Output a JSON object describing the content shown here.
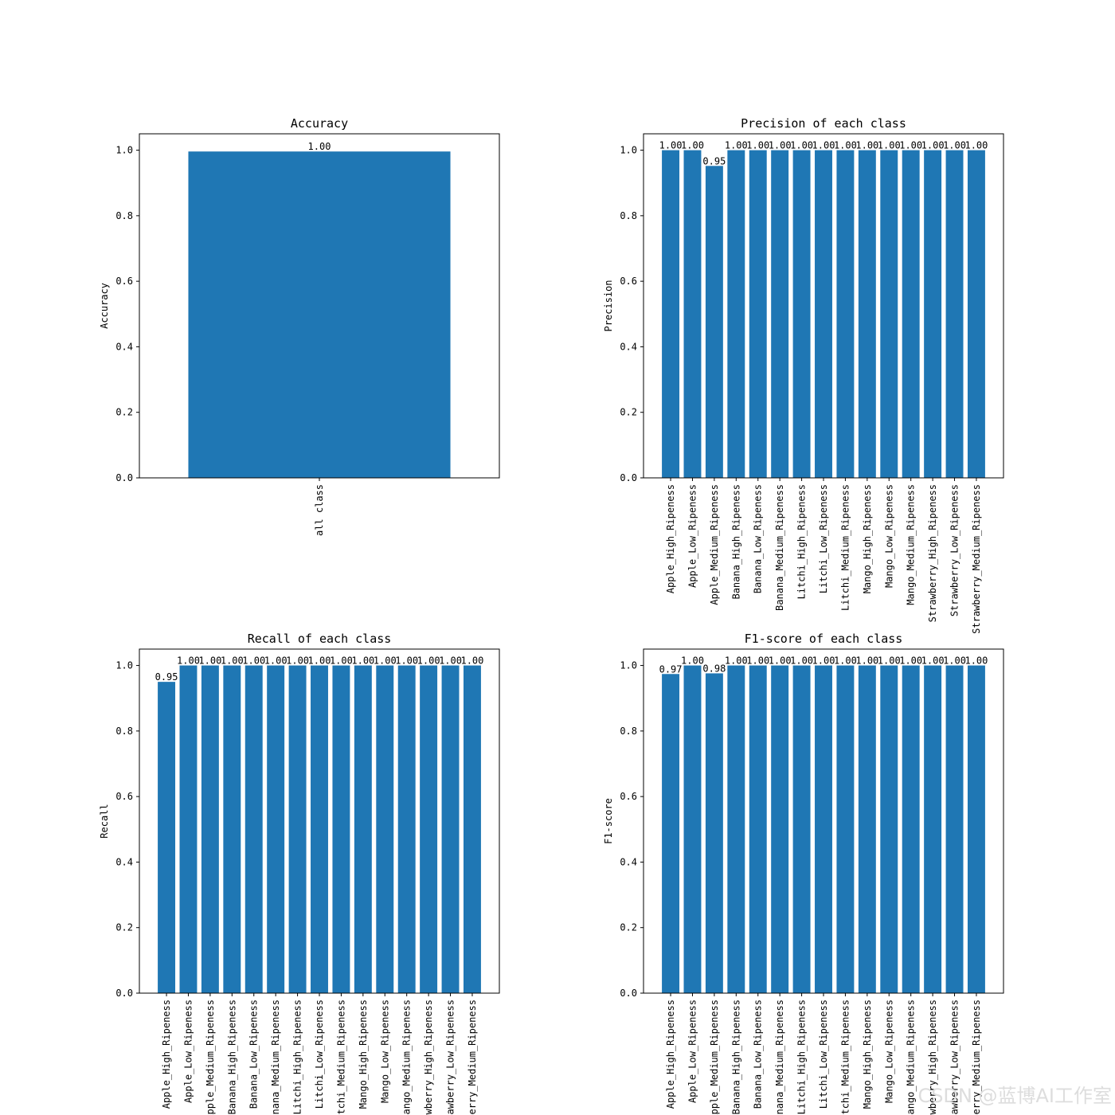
{
  "charts": [
    {
      "type": "bar",
      "title": "Accuracy",
      "ylabel": "Accuracy",
      "categories": [
        "all class"
      ],
      "values": [
        0.996
      ],
      "value_labels": [
        "1.00"
      ],
      "ylim": [
        0,
        1.05
      ],
      "yticks": [
        "0.0",
        "0.2",
        "0.4",
        "0.6",
        "0.8",
        "1.0"
      ],
      "grid": false,
      "legend": "none"
    },
    {
      "type": "bar",
      "title": "Precision of each class",
      "ylabel": "Precision",
      "categories": [
        "Apple_High_Ripeness",
        "Apple_Low_Ripeness",
        "Apple_Medium_Ripeness",
        "Banana_High_Ripeness",
        "Banana_Low_Ripeness",
        "Banana_Medium_Ripeness",
        "Litchi_High_Ripeness",
        "Litchi_Low_Ripeness",
        "Litchi_Medium_Ripeness",
        "Mango_High_Ripeness",
        "Mango_Low_Ripeness",
        "Mango_Medium_Ripeness",
        "Strawberry_High_Ripeness",
        "Strawberry_Low_Ripeness",
        "Strawberry_Medium_Ripeness"
      ],
      "values": [
        1.0,
        1.0,
        0.952,
        1.0,
        1.0,
        1.0,
        1.0,
        1.0,
        1.0,
        1.0,
        1.0,
        1.0,
        1.0,
        1.0,
        1.0
      ],
      "value_labels": [
        "1.00",
        "1.00",
        "0.95",
        "1.00",
        "1.00",
        "1.00",
        "1.00",
        "1.00",
        "1.00",
        "1.00",
        "1.00",
        "1.00",
        "1.00",
        "1.00",
        "1.00"
      ],
      "ylim": [
        0,
        1.05
      ],
      "yticks": [
        "0.0",
        "0.2",
        "0.4",
        "0.6",
        "0.8",
        "1.0"
      ],
      "grid": false,
      "legend": "none"
    },
    {
      "type": "bar",
      "title": "Recall of each class",
      "ylabel": "Recall",
      "categories": [
        "Apple_High_Ripeness",
        "Apple_Low_Ripeness",
        "Apple_Medium_Ripeness",
        "Banana_High_Ripeness",
        "Banana_Low_Ripeness",
        "Banana_Medium_Ripeness",
        "Litchi_High_Ripeness",
        "Litchi_Low_Ripeness",
        "Litchi_Medium_Ripeness",
        "Mango_High_Ripeness",
        "Mango_Low_Ripeness",
        "Mango_Medium_Ripeness",
        "Strawberry_High_Ripeness",
        "Strawberry_Low_Ripeness",
        "Strawberry_Medium_Ripeness"
      ],
      "values": [
        0.95,
        1.0,
        1.0,
        1.0,
        1.0,
        1.0,
        1.0,
        1.0,
        1.0,
        1.0,
        1.0,
        1.0,
        1.0,
        1.0,
        1.0
      ],
      "value_labels": [
        "0.95",
        "1.00",
        "1.00",
        "1.00",
        "1.00",
        "1.00",
        "1.00",
        "1.00",
        "1.00",
        "1.00",
        "1.00",
        "1.00",
        "1.00",
        "1.00",
        "1.00"
      ],
      "ylim": [
        0,
        1.05
      ],
      "yticks": [
        "0.0",
        "0.2",
        "0.4",
        "0.6",
        "0.8",
        "1.0"
      ],
      "grid": false,
      "legend": "none"
    },
    {
      "type": "bar",
      "title": "F1-score of each class",
      "ylabel": "F1-score",
      "categories": [
        "Apple_High_Ripeness",
        "Apple_Low_Ripeness",
        "Apple_Medium_Ripeness",
        "Banana_High_Ripeness",
        "Banana_Low_Ripeness",
        "Banana_Medium_Ripeness",
        "Litchi_High_Ripeness",
        "Litchi_Low_Ripeness",
        "Litchi_Medium_Ripeness",
        "Mango_High_Ripeness",
        "Mango_Low_Ripeness",
        "Mango_Medium_Ripeness",
        "Strawberry_High_Ripeness",
        "Strawberry_Low_Ripeness",
        "Strawberry_Medium_Ripeness"
      ],
      "values": [
        0.974,
        1.0,
        0.976,
        1.0,
        1.0,
        1.0,
        1.0,
        1.0,
        1.0,
        1.0,
        1.0,
        1.0,
        1.0,
        1.0,
        1.0
      ],
      "value_labels": [
        "0.97",
        "1.00",
        "0.98",
        "1.00",
        "1.00",
        "1.00",
        "1.00",
        "1.00",
        "1.00",
        "1.00",
        "1.00",
        "1.00",
        "1.00",
        "1.00",
        "1.00"
      ],
      "ylim": [
        0,
        1.05
      ],
      "yticks": [
        "0.0",
        "0.2",
        "0.4",
        "0.6",
        "0.8",
        "1.0"
      ],
      "grid": false,
      "legend": "none"
    }
  ],
  "colors": {
    "bar": "#1f77b4",
    "axis": "#000000",
    "background": "#ffffff",
    "watermark": "#dddddd"
  },
  "watermark": "CSDN @蓝博AI工作室"
}
